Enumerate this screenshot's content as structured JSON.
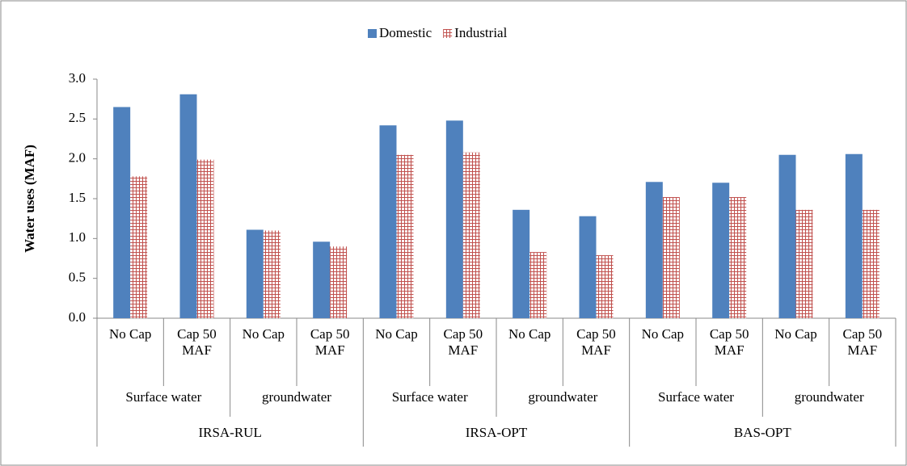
{
  "chart_data": {
    "type": "bar",
    "y_label": "Water uses (MAF)",
    "categories": [
      "No Cap",
      "Cap 50 MAF",
      "No Cap",
      "Cap 50 MAF",
      "No Cap",
      "Cap 50 MAF",
      "No Cap",
      "Cap 50 MAF",
      "No Cap",
      "Cap 50 MAF",
      "No Cap",
      "Cap 50 MAF"
    ],
    "subgroups": [
      "Surface water",
      "groundwater",
      "Surface water",
      "groundwater",
      "Surface water",
      "groundwater"
    ],
    "groups": [
      "IRSA-RUL",
      "IRSA-OPT",
      "BAS-OPT"
    ],
    "series": [
      {
        "name": "Domestic",
        "color": "#4f81bd",
        "values": [
          2.65,
          2.81,
          1.11,
          0.96,
          2.42,
          2.48,
          1.36,
          1.28,
          1.71,
          1.7,
          2.05,
          2.06
        ]
      },
      {
        "name": "Industrial",
        "color": "#c0504d",
        "pattern": "grid",
        "values": [
          1.78,
          1.99,
          1.1,
          0.9,
          2.05,
          2.08,
          0.83,
          0.79,
          1.52,
          1.52,
          1.36,
          1.36
        ]
      }
    ],
    "ylim": [
      0,
      3
    ],
    "yticks": [
      {
        "value": 0,
        "label": "0.0"
      },
      0.5,
      {
        "value": 1,
        "label": "1.0"
      },
      1.5,
      {
        "value": 2,
        "label": "2.0"
      },
      2.5,
      {
        "value": 3,
        "label": "3.0"
      }
    ],
    "legend": "top"
  }
}
